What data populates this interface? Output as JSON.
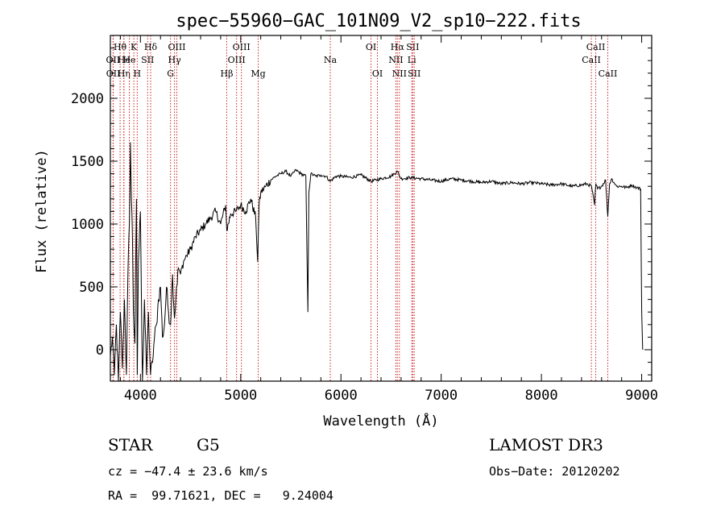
{
  "chart_data": {
    "type": "line",
    "title": "spec−55960−GAC_101N09_V2_sp10−222.fits",
    "xlabel": "Wavelength (Å)",
    "ylabel": "Flux (relative)",
    "xlim": [
      3700,
      9100
    ],
    "ylim": [
      -250,
      2500
    ],
    "xticks": [
      4000,
      5000,
      6000,
      7000,
      8000,
      9000
    ],
    "xtick_labels": [
      "4000",
      "5000",
      "6000",
      "7000",
      "8000",
      "9000"
    ],
    "yticks": [
      0,
      500,
      1000,
      1500,
      2000
    ],
    "ytick_labels": [
      "0",
      "500",
      "1000",
      "1500",
      "2000"
    ],
    "line_color": "#000000",
    "marker_color": "#cc2222",
    "series": [
      {
        "name": "flux",
        "x": [
          3700,
          3720,
          3740,
          3760,
          3780,
          3800,
          3820,
          3840,
          3860,
          3875,
          3890,
          3900,
          3910,
          3920,
          3930,
          3945,
          3960,
          3968,
          3980,
          4000,
          4020,
          4040,
          4060,
          4080,
          4100,
          4120,
          4140,
          4160,
          4180,
          4200,
          4220,
          4240,
          4260,
          4280,
          4300,
          4320,
          4340,
          4360,
          4380,
          4400,
          4430,
          4460,
          4500,
          4550,
          4600,
          4650,
          4700,
          4750,
          4800,
          4850,
          4861,
          4900,
          4950,
          5000,
          5050,
          5100,
          5150,
          5170,
          5183,
          5200,
          5250,
          5300,
          5350,
          5400,
          5450,
          5500,
          5550,
          5600,
          5650,
          5670,
          5680,
          5700,
          5750,
          5800,
          5850,
          5893,
          5950,
          6000,
          6100,
          6200,
          6300,
          6400,
          6500,
          6563,
          6600,
          6700,
          6800,
          6900,
          7000,
          7100,
          7200,
          7300,
          7400,
          7500,
          7600,
          7700,
          7800,
          7900,
          8000,
          8100,
          8200,
          8300,
          8400,
          8450,
          8500,
          8530,
          8542,
          8560,
          8600,
          8640,
          8662,
          8680,
          8700,
          8750,
          8800,
          8850,
          8900,
          8950,
          8990,
          9000,
          9010
        ],
        "y": [
          -50,
          100,
          -200,
          200,
          -250,
          300,
          -150,
          400,
          -200,
          600,
          1000,
          1650,
          1200,
          900,
          300,
          50,
          1200,
          -200,
          700,
          1100,
          -250,
          400,
          -200,
          300,
          -200,
          -100,
          100,
          200,
          400,
          500,
          100,
          200,
          500,
          300,
          200,
          600,
          250,
          500,
          650,
          600,
          700,
          750,
          800,
          900,
          950,
          1000,
          1050,
          1100,
          1000,
          1150,
          950,
          1080,
          1100,
          1150,
          1100,
          1200,
          1050,
          700,
          1150,
          1250,
          1300,
          1350,
          1380,
          1400,
          1420,
          1380,
          1430,
          1400,
          1380,
          300,
          1250,
          1400,
          1380,
          1390,
          1380,
          1340,
          1380,
          1380,
          1370,
          1390,
          1340,
          1360,
          1380,
          1420,
          1360,
          1370,
          1360,
          1350,
          1340,
          1360,
          1350,
          1340,
          1330,
          1340,
          1320,
          1330,
          1320,
          1330,
          1320,
          1310,
          1320,
          1300,
          1310,
          1320,
          1300,
          1150,
          1320,
          1280,
          1300,
          1350,
          1060,
          1320,
          1360,
          1300,
          1300,
          1290,
          1310,
          1290,
          1280,
          300,
          0
        ]
      }
    ],
    "line_markers": [
      {
        "wl": 3797,
        "label": "Hθ",
        "row": 1
      },
      {
        "wl": 3727,
        "label": "OII",
        "row": 2
      },
      {
        "wl": 3729,
        "label": "OII",
        "row": 3
      },
      {
        "wl": 3835,
        "label": "He",
        "row": 2
      },
      {
        "wl": 3835,
        "label": "Hη",
        "row": 3
      },
      {
        "wl": 3889,
        "label": "He",
        "row": 2
      },
      {
        "wl": 3934,
        "label": "K",
        "row": 1
      },
      {
        "wl": 3968,
        "label": "H",
        "row": 3
      },
      {
        "wl": 4072,
        "label": "SII",
        "row": 2
      },
      {
        "wl": 4102,
        "label": "Hδ",
        "row": 1
      },
      {
        "wl": 4300,
        "label": "G",
        "row": 3
      },
      {
        "wl": 4340,
        "label": "Hγ",
        "row": 2
      },
      {
        "wl": 4363,
        "label": "OIII",
        "row": 1
      },
      {
        "wl": 4861,
        "label": "Hβ",
        "row": 3
      },
      {
        "wl": 4959,
        "label": "OIII",
        "row": 2
      },
      {
        "wl": 5007,
        "label": "OIII",
        "row": 1
      },
      {
        "wl": 5175,
        "label": "Mg",
        "row": 3
      },
      {
        "wl": 5894,
        "label": "Na",
        "row": 2
      },
      {
        "wl": 6300,
        "label": "OI",
        "row": 1
      },
      {
        "wl": 6364,
        "label": "OI",
        "row": 3
      },
      {
        "wl": 6548,
        "label": "NII",
        "row": 2
      },
      {
        "wl": 6563,
        "label": "Hα",
        "row": 1
      },
      {
        "wl": 6583,
        "label": "NII",
        "row": 3
      },
      {
        "wl": 6707,
        "label": "Li",
        "row": 2
      },
      {
        "wl": 6716,
        "label": "SII",
        "row": 1
      },
      {
        "wl": 6731,
        "label": "SII",
        "row": 3
      },
      {
        "wl": 8498,
        "label": "CaII",
        "row": 2
      },
      {
        "wl": 8542,
        "label": "CaII",
        "row": 1
      },
      {
        "wl": 8662,
        "label": "CaII",
        "row": 3
      }
    ]
  },
  "info": {
    "object_class": "STAR",
    "subclass": "G5",
    "survey": "LAMOST DR3",
    "redshift_line": "cz = −47.4 ± 23.6 km/s",
    "obs_date_line": "Obs−Date: 20120202",
    "coords_line": "RA =  99.71621, DEC =   9.24004"
  }
}
